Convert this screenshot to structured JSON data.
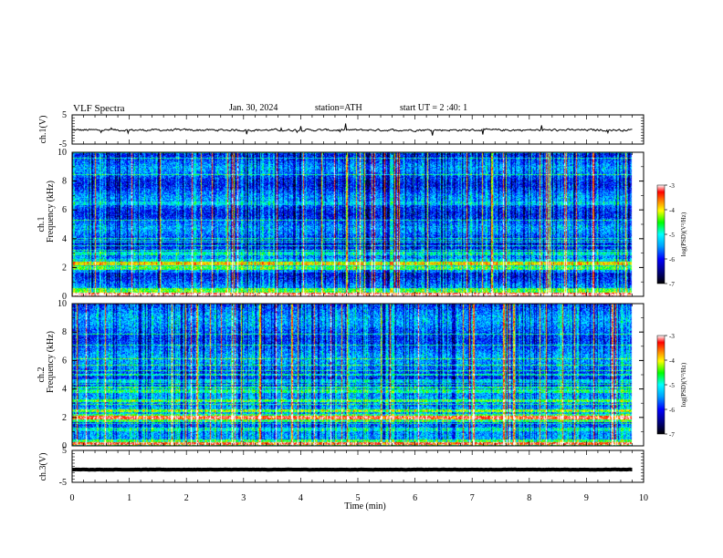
{
  "header": {
    "title": "VLF  Spectra",
    "date": "Jan. 30, 2024",
    "station": "station=ATH",
    "start": "start  UT  =   2  :40: 1"
  },
  "colors": {
    "spectrogram_map": [
      "#000000",
      "#000080",
      "#0000ff",
      "#00a0ff",
      "#00ffff",
      "#00ff00",
      "#ffff00",
      "#ff8000",
      "#ff0000",
      "#ffffff"
    ],
    "trace": "#000000"
  },
  "chart_data": [
    {
      "type": "line",
      "id": "ch1-voltage",
      "ylabel": "ch.1(V)",
      "yticks": [
        "5",
        "-5"
      ],
      "ylim": [
        -5,
        5
      ],
      "xlim": [
        0,
        10
      ],
      "mean_level": -0.2,
      "noise_amplitude": 1.2,
      "data_end": 9.8
    },
    {
      "type": "heatmap",
      "id": "ch1-spectrogram",
      "ylabel": "ch.1\nFrequency  (kHz)",
      "yticks": [
        "0",
        "2",
        "4",
        "6",
        "8",
        "10"
      ],
      "ylim": [
        0,
        10
      ],
      "xlim": [
        0,
        10
      ],
      "data_end": 9.8,
      "bands": [
        {
          "f": 0.15,
          "level": 0.95
        },
        {
          "f": 0.5,
          "level": 0.55
        },
        {
          "f": 1.05,
          "level": 0.2
        },
        {
          "f": 1.5,
          "level": 0.12
        },
        {
          "f": 2.0,
          "level": 0.55
        },
        {
          "f": 2.3,
          "level": 0.7
        },
        {
          "f": 3.0,
          "level": 0.45
        },
        {
          "f": 4.8,
          "level": 0.35
        },
        {
          "f": 6.5,
          "level": 0.4
        }
      ],
      "colorbar": {
        "label": "log(PSD)(V²/Hz)",
        "ticks": [
          "-3",
          "-4",
          "-5",
          "-6",
          "-7"
        ],
        "range": [
          -7,
          -3
        ]
      }
    },
    {
      "type": "heatmap",
      "id": "ch2-spectrogram",
      "ylabel": "ch.2\nFrequency  (kHz)",
      "yticks": [
        "0",
        "2",
        "4",
        "6",
        "8",
        "10"
      ],
      "ylim": [
        0,
        10
      ],
      "xlim": [
        0,
        10
      ],
      "data_end": 9.8,
      "bands": [
        {
          "f": 0.2,
          "level": 0.9
        },
        {
          "f": 1.2,
          "level": 0.45
        },
        {
          "f": 2.0,
          "level": 0.9
        },
        {
          "f": 2.5,
          "level": 0.6
        },
        {
          "f": 3.2,
          "level": 0.55
        },
        {
          "f": 3.9,
          "level": 0.5
        },
        {
          "f": 4.6,
          "level": 0.4
        }
      ],
      "colorbar": {
        "label": "log(PSD)(V²/Hz)",
        "ticks": [
          "-3",
          "-4",
          "-5",
          "-6",
          "-7"
        ],
        "range": [
          -7,
          -3
        ]
      }
    },
    {
      "type": "line",
      "id": "ch3-voltage",
      "ylabel": "ch.3(V)",
      "yticks": [
        "5",
        "-5"
      ],
      "ylim": [
        -5,
        5
      ],
      "xlim": [
        0,
        10
      ],
      "mean_level": -1.0,
      "noise_amplitude": 0.15,
      "data_end": 9.8
    }
  ],
  "xaxis": {
    "label": "Time  (min)",
    "ticks": [
      "0",
      "1",
      "2",
      "3",
      "4",
      "5",
      "6",
      "7",
      "8",
      "9",
      "10"
    ]
  }
}
